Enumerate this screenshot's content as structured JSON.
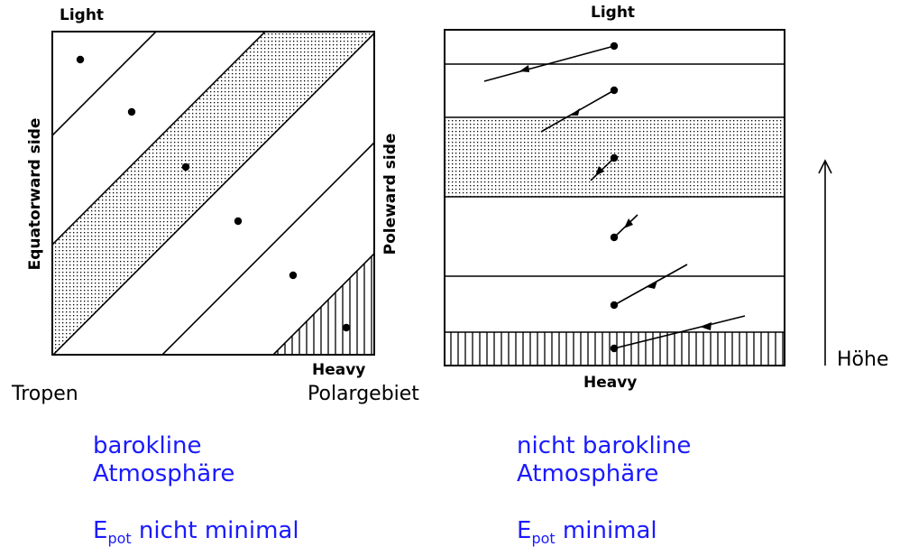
{
  "left_figure": {
    "top_label": "Light",
    "bottom_label": "Heavy",
    "left_side_label": "Equatorward side",
    "right_side_label": "Poleward side",
    "bottom_left_word": "Tropen",
    "bottom_right_word": "Polargebiet"
  },
  "right_figure": {
    "top_label": "Light",
    "bottom_label": "Heavy",
    "height_label": "Höhe"
  },
  "captions": {
    "left": {
      "line1": "barokline",
      "line2": "Atmosphäre",
      "epot_base": "E",
      "epot_sub": "pot",
      "epot_rest": " nicht minimal"
    },
    "right": {
      "line1": "nicht barokline",
      "line2": "Atmosphäre",
      "epot_base": "E",
      "epot_sub": "pot",
      "epot_rest": " minimal"
    }
  },
  "colors": {
    "ink": "#000000",
    "caption": "#1a1aff"
  }
}
